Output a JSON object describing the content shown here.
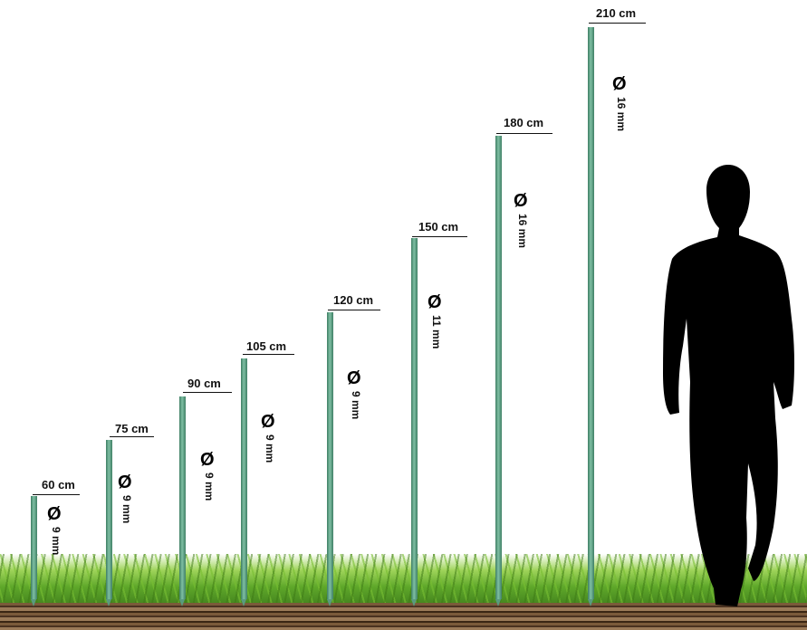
{
  "posts": [
    {
      "height_label": "60 cm",
      "diameter_label": "9 mm",
      "height_cm": 60,
      "diameter_mm": 9
    },
    {
      "height_label": "75 cm",
      "diameter_label": "9 mm",
      "height_cm": 75,
      "diameter_mm": 9
    },
    {
      "height_label": "90 cm",
      "diameter_label": "9 mm",
      "height_cm": 90,
      "diameter_mm": 9
    },
    {
      "height_label": "105 cm",
      "diameter_label": "9 mm",
      "height_cm": 105,
      "diameter_mm": 9
    },
    {
      "height_label": "120 cm",
      "diameter_label": "9 mm",
      "height_cm": 120,
      "diameter_mm": 9
    },
    {
      "height_label": "150 cm",
      "diameter_label": "11 mm",
      "height_cm": 150,
      "diameter_mm": 11
    },
    {
      "height_label": "180 cm",
      "diameter_label": "16 mm",
      "height_cm": 180,
      "diameter_mm": 16
    },
    {
      "height_label": "210 cm",
      "diameter_label": "16 mm",
      "height_cm": 210,
      "diameter_mm": 16
    }
  ],
  "diameter_symbol": "Ø",
  "colors": {
    "post": "#5a9a80",
    "grass": "#5fa82a",
    "silhouette": "#000000"
  }
}
